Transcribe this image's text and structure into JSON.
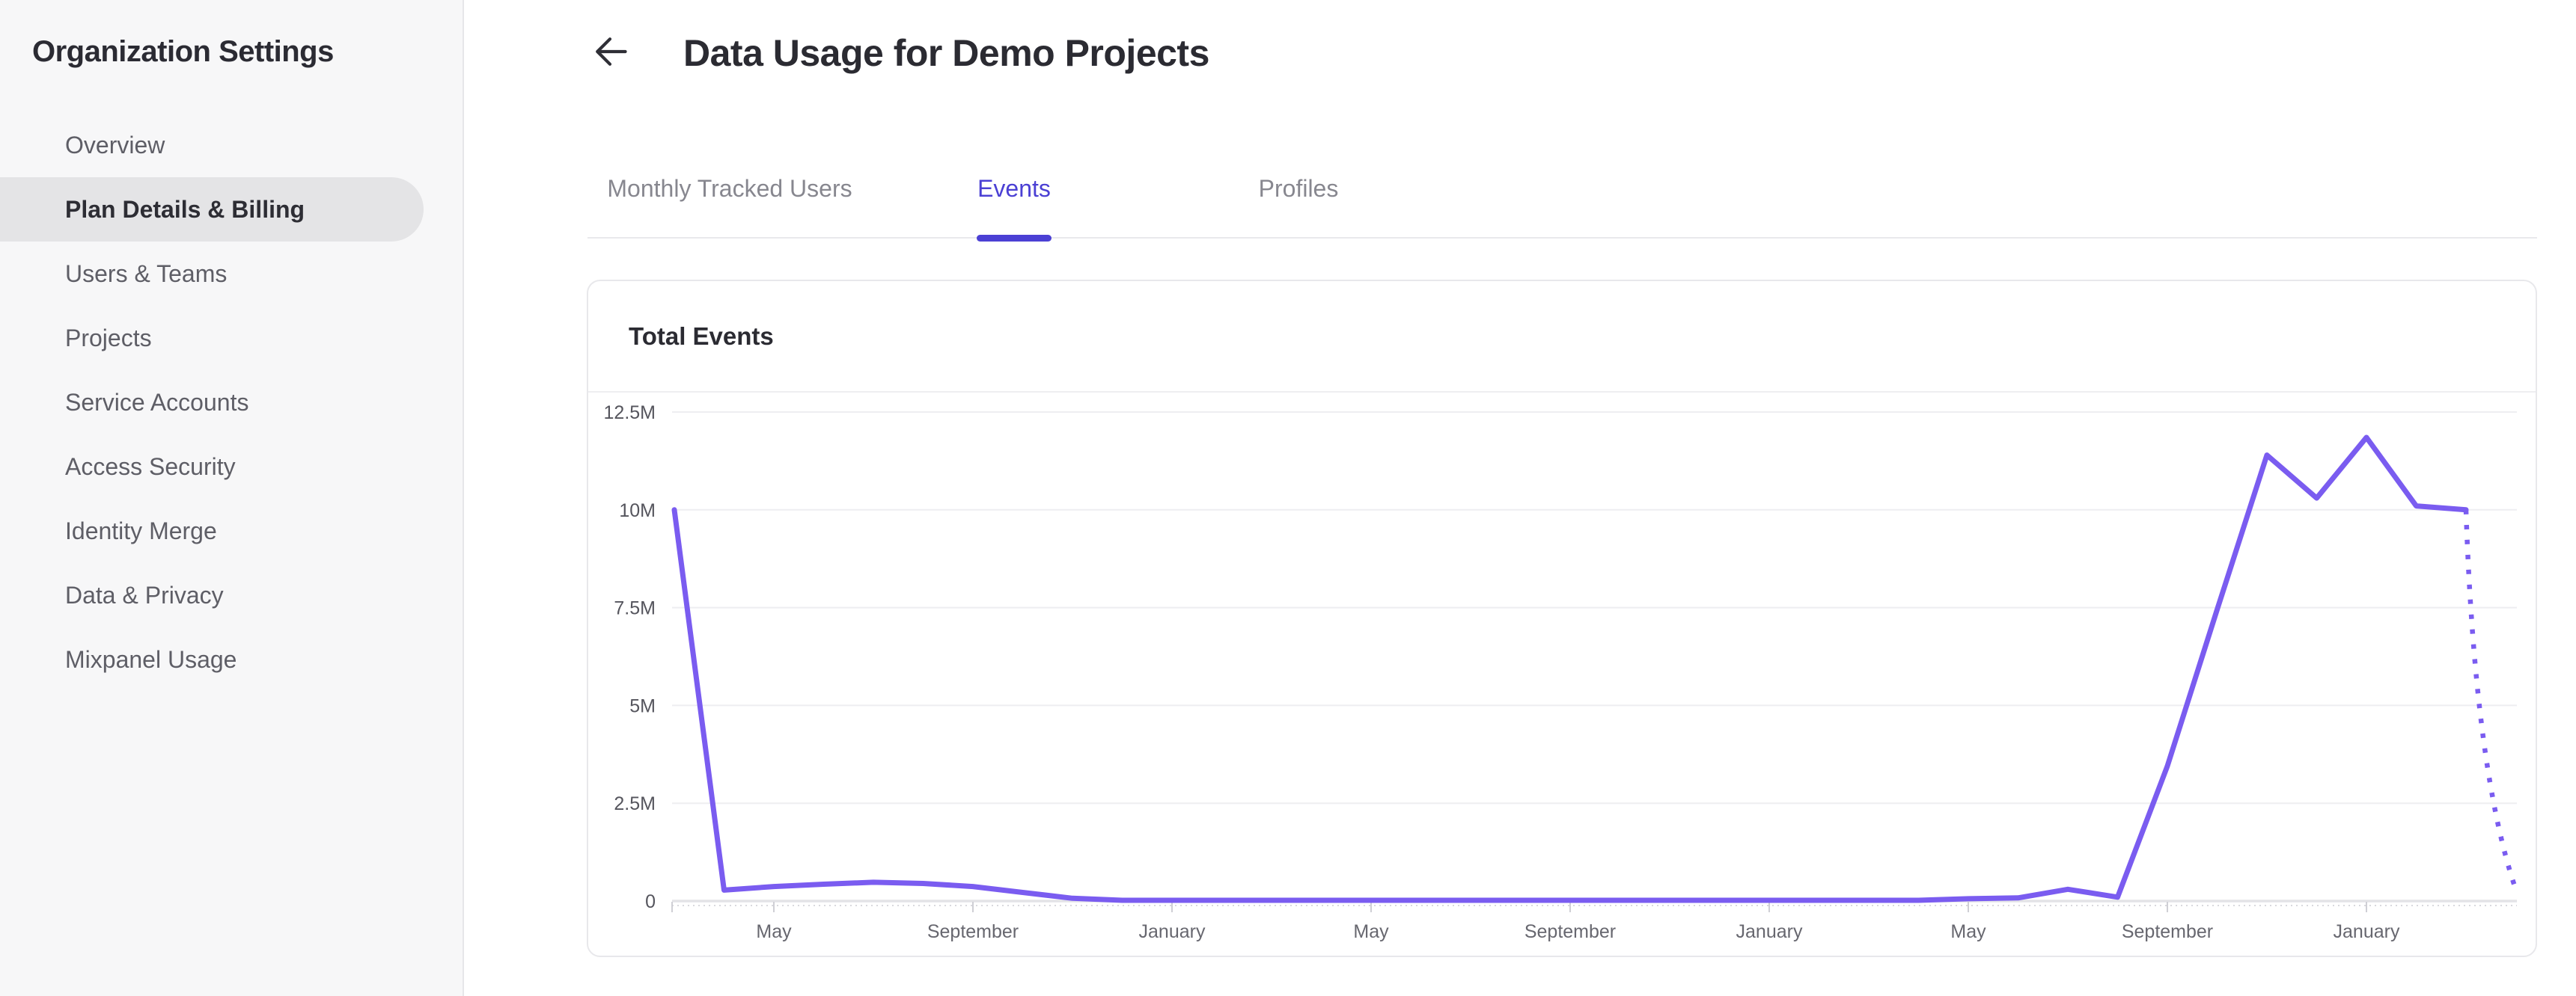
{
  "sidebar": {
    "title": "Organization Settings",
    "items": [
      {
        "label": "Overview",
        "active": false
      },
      {
        "label": "Plan Details & Billing",
        "active": true
      },
      {
        "label": "Users & Teams",
        "active": false
      },
      {
        "label": "Projects",
        "active": false
      },
      {
        "label": "Service Accounts",
        "active": false
      },
      {
        "label": "Access Security",
        "active": false
      },
      {
        "label": "Identity Merge",
        "active": false
      },
      {
        "label": "Data & Privacy",
        "active": false
      },
      {
        "label": "Mixpanel Usage",
        "active": false
      }
    ]
  },
  "header": {
    "back_icon": "arrow-left-icon",
    "title": "Data Usage for Demo Projects"
  },
  "tabs": [
    {
      "label": "Monthly Tracked Users",
      "active": false
    },
    {
      "label": "Events",
      "active": true
    },
    {
      "label": "Profiles",
      "active": false
    }
  ],
  "card": {
    "title": "Total Events"
  },
  "chart_data": {
    "type": "line",
    "title": "Total Events",
    "ylim": [
      0,
      12.5
    ],
    "grid": "horizontal",
    "legend": "none",
    "line_color": "#7a5cf0",
    "units": "millions of events",
    "y_ticks": [
      {
        "label": "0",
        "value": 0
      },
      {
        "label": "2.5M",
        "value": 2.5
      },
      {
        "label": "5M",
        "value": 5
      },
      {
        "label": "7.5M",
        "value": 7.5
      },
      {
        "label": "10M",
        "value": 10
      },
      {
        "label": "12.5M",
        "value": 12.5
      }
    ],
    "x_ticks": [
      {
        "label": "May",
        "month_index": 2
      },
      {
        "label": "September",
        "month_index": 6
      },
      {
        "label": "January",
        "month_index": 10
      },
      {
        "label": "May",
        "month_index": 14
      },
      {
        "label": "September",
        "month_index": 18
      },
      {
        "label": "January",
        "month_index": 22
      },
      {
        "label": "May",
        "month_index": 26
      },
      {
        "label": "September",
        "month_index": 30
      },
      {
        "label": "January",
        "month_index": 34
      }
    ],
    "series": [
      {
        "name": "Total Events",
        "months": [
          "Mar Y1",
          "Apr Y1",
          "May Y1",
          "Jun Y1",
          "Jul Y1",
          "Aug Y1",
          "Sep Y1",
          "Oct Y1",
          "Nov Y1",
          "Dec Y1",
          "Jan Y2",
          "Feb Y2",
          "Mar Y2",
          "Apr Y2",
          "May Y2",
          "Jun Y2",
          "Jul Y2",
          "Aug Y2",
          "Sep Y2",
          "Oct Y2",
          "Nov Y2",
          "Dec Y2",
          "Jan Y3",
          "Feb Y3",
          "Mar Y3",
          "Apr Y3",
          "May Y3",
          "Jun Y3",
          "Jul Y3",
          "Aug Y3",
          "Sep Y3",
          "Oct Y3",
          "Nov Y3",
          "Dec Y3",
          "Jan Y4",
          "Feb Y4",
          "Mar Y4",
          "Apr Y4"
        ],
        "values_millions": [
          10,
          0.28,
          0.37,
          0.43,
          0.48,
          0.45,
          0.37,
          0.22,
          0.07,
          0.02,
          0.02,
          0.02,
          0.02,
          0.02,
          0.02,
          0.02,
          0.02,
          0.02,
          0.02,
          0.02,
          0.02,
          0.02,
          0.02,
          0.02,
          0.02,
          0.02,
          0.06,
          0.08,
          0.3,
          0.1,
          3.45,
          7.45,
          11.4,
          10.3,
          11.85,
          10.1,
          10,
          0.3
        ],
        "last_point_projected_dotted": true
      }
    ]
  }
}
